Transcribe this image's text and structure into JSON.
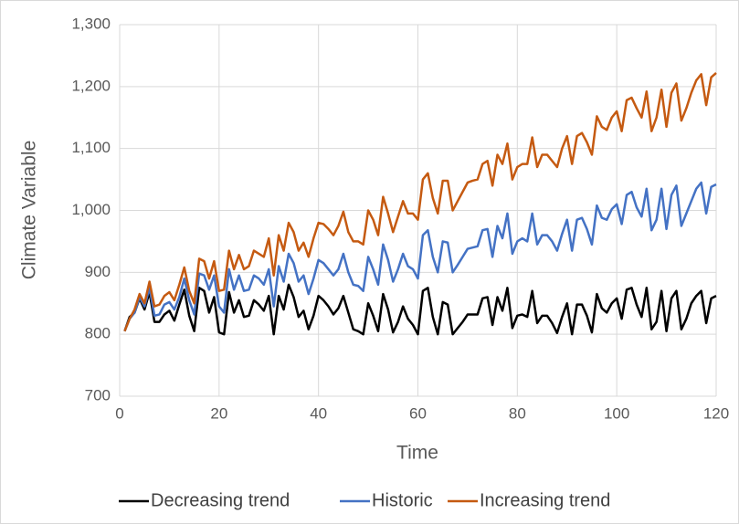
{
  "chart_data": {
    "type": "line",
    "x_label": "Time",
    "y_label": "Climate Variable",
    "xlim": [
      0,
      120
    ],
    "xticks": [
      0,
      20,
      40,
      60,
      80,
      100,
      120
    ],
    "ylim": [
      700,
      1300
    ],
    "yticks": [
      700,
      800,
      900,
      {
        "value": 1000,
        "label": "1,000"
      },
      {
        "value": 1100,
        "label": "1,100"
      },
      {
        "value": 1200,
        "label": "1,200"
      },
      {
        "value": 1300,
        "label": "1,300"
      }
    ],
    "grid": true,
    "legend": "bottom",
    "x": [
      1,
      2,
      3,
      4,
      5,
      6,
      7,
      8,
      9,
      10,
      11,
      12,
      13,
      14,
      15,
      16,
      17,
      18,
      19,
      20,
      21,
      22,
      23,
      24,
      25,
      26,
      27,
      28,
      29,
      30,
      31,
      32,
      33,
      34,
      35,
      36,
      37,
      38,
      39,
      40,
      41,
      42,
      43,
      44,
      45,
      46,
      47,
      48,
      49,
      50,
      51,
      52,
      53,
      54,
      55,
      56,
      57,
      58,
      59,
      60,
      61,
      62,
      63,
      64,
      65,
      66,
      67,
      68,
      69,
      70,
      71,
      72,
      73,
      74,
      75,
      76,
      77,
      78,
      79,
      80,
      81,
      82,
      83,
      84,
      85,
      86,
      87,
      88,
      89,
      90,
      91,
      92,
      93,
      94,
      95,
      96,
      97,
      98,
      99,
      100,
      101,
      102,
      103,
      104,
      105,
      106,
      107,
      108,
      109,
      110,
      111,
      112,
      113,
      114,
      115,
      116,
      117,
      118,
      119,
      120
    ],
    "series": [
      {
        "name": "Decreasing trend",
        "color": "#000000",
        "values": [
          805,
          828,
          835,
          858,
          840,
          868,
          820,
          820,
          832,
          838,
          822,
          848,
          872,
          830,
          805,
          875,
          870,
          835,
          860,
          803,
          800,
          868,
          835,
          855,
          828,
          830,
          855,
          848,
          838,
          862,
          800,
          862,
          840,
          880,
          860,
          828,
          838,
          808,
          830,
          862,
          855,
          845,
          832,
          842,
          862,
          835,
          808,
          805,
          800,
          850,
          830,
          805,
          865,
          840,
          803,
          820,
          845,
          825,
          815,
          800,
          870,
          875,
          828,
          800,
          852,
          848,
          800,
          810,
          820,
          832,
          832,
          832,
          858,
          860,
          815,
          860,
          838,
          875,
          810,
          830,
          832,
          828,
          870,
          818,
          830,
          830,
          818,
          802,
          828,
          850,
          800,
          848,
          848,
          830,
          803,
          865,
          842,
          835,
          850,
          858,
          825,
          872,
          875,
          848,
          828,
          875,
          808,
          820,
          870,
          805,
          858,
          870,
          808,
          825,
          850,
          862,
          870,
          818,
          858,
          862
        ]
      },
      {
        "name": "Historic",
        "color": "#4472c4",
        "values": [
          805,
          825,
          835,
          860,
          845,
          875,
          830,
          832,
          848,
          852,
          840,
          860,
          890,
          855,
          832,
          898,
          895,
          872,
          895,
          845,
          835,
          905,
          872,
          895,
          870,
          872,
          895,
          890,
          880,
          905,
          845,
          910,
          885,
          930,
          915,
          885,
          895,
          865,
          890,
          920,
          915,
          905,
          895,
          905,
          930,
          900,
          880,
          878,
          870,
          925,
          905,
          880,
          945,
          920,
          885,
          905,
          930,
          910,
          905,
          890,
          960,
          968,
          925,
          900,
          950,
          948,
          900,
          912,
          925,
          938,
          940,
          942,
          968,
          970,
          925,
          975,
          955,
          995,
          930,
          950,
          955,
          950,
          995,
          945,
          960,
          960,
          950,
          935,
          962,
          985,
          935,
          985,
          988,
          970,
          945,
          1008,
          988,
          985,
          1002,
          1010,
          978,
          1025,
          1030,
          1005,
          990,
          1035,
          968,
          985,
          1035,
          970,
          1025,
          1040,
          975,
          995,
          1015,
          1035,
          1045,
          995,
          1038,
          1042
        ]
      },
      {
        "name": "Increasing trend",
        "color": "#c55a11",
        "values": [
          805,
          825,
          840,
          865,
          850,
          885,
          845,
          848,
          862,
          868,
          855,
          880,
          908,
          870,
          850,
          922,
          918,
          890,
          918,
          870,
          872,
          935,
          905,
          928,
          905,
          910,
          935,
          930,
          925,
          955,
          895,
          960,
          935,
          980,
          965,
          935,
          948,
          925,
          955,
          980,
          978,
          970,
          960,
          975,
          998,
          965,
          950,
          950,
          945,
          1000,
          985,
          960,
          1022,
          995,
          965,
          990,
          1015,
          995,
          995,
          985,
          1050,
          1060,
          1020,
          995,
          1048,
          1048,
          1000,
          1015,
          1030,
          1045,
          1048,
          1050,
          1075,
          1080,
          1040,
          1090,
          1075,
          1108,
          1050,
          1070,
          1075,
          1075,
          1118,
          1070,
          1090,
          1090,
          1080,
          1070,
          1100,
          1120,
          1075,
          1120,
          1125,
          1110,
          1090,
          1152,
          1135,
          1130,
          1150,
          1160,
          1128,
          1178,
          1182,
          1165,
          1150,
          1192,
          1128,
          1150,
          1195,
          1135,
          1190,
          1205,
          1145,
          1165,
          1190,
          1210,
          1220,
          1170,
          1215,
          1222
        ]
      }
    ]
  }
}
